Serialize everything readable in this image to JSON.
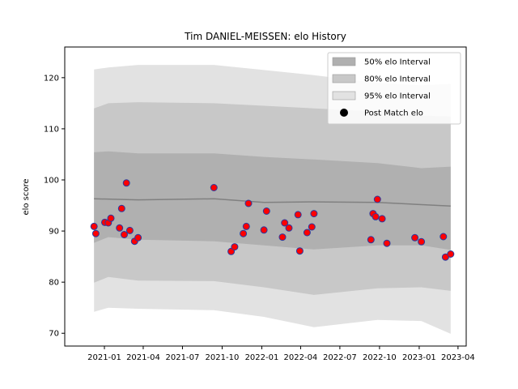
{
  "chart_data": {
    "type": "scatter",
    "title": "Tim DANIEL-MEISSEN: elo History",
    "xlabel": "",
    "ylabel": "elo score",
    "xlim": [
      "2020-10-01",
      "2023-04-20"
    ],
    "ylim": [
      67.5,
      126.0
    ],
    "x_ticks": [
      "2021-01",
      "2021-04",
      "2021-07",
      "2021-10",
      "2022-01",
      "2022-04",
      "2022-07",
      "2022-10",
      "2023-01",
      "2023-04"
    ],
    "y_ticks": [
      70,
      80,
      90,
      100,
      110,
      120
    ],
    "grid": false,
    "legend_position": "top-right",
    "legend": [
      "50% elo Interval",
      "80% elo Interval",
      "95% elo Interval",
      "Post Match elo"
    ],
    "colors": {
      "band50": "#b0b0b0",
      "band80": "#c8c8c8",
      "band95": "#e2e2e2",
      "point_fill": "#ff0000",
      "point_edge": "#2a3aa0",
      "mean_line": "#808080"
    },
    "series": [
      {
        "name": "Post Match elo",
        "points": [
          {
            "x": "2020-12-08",
            "y": 90.9
          },
          {
            "x": "2020-12-12",
            "y": 89.5
          },
          {
            "x": "2021-01-02",
            "y": 91.7
          },
          {
            "x": "2021-01-10",
            "y": 91.6
          },
          {
            "x": "2021-01-16",
            "y": 92.5
          },
          {
            "x": "2021-02-05",
            "y": 90.6
          },
          {
            "x": "2021-02-10",
            "y": 94.4
          },
          {
            "x": "2021-02-16",
            "y": 89.3
          },
          {
            "x": "2021-02-21",
            "y": 99.4
          },
          {
            "x": "2021-03-01",
            "y": 90.1
          },
          {
            "x": "2021-03-12",
            "y": 88.0
          },
          {
            "x": "2021-03-20",
            "y": 88.7
          },
          {
            "x": "2021-09-12",
            "y": 98.5
          },
          {
            "x": "2021-10-22",
            "y": 86.0
          },
          {
            "x": "2021-10-30",
            "y": 86.9
          },
          {
            "x": "2021-11-19",
            "y": 89.5
          },
          {
            "x": "2021-11-26",
            "y": 90.9
          },
          {
            "x": "2021-12-01",
            "y": 95.4
          },
          {
            "x": "2022-01-06",
            "y": 90.2
          },
          {
            "x": "2022-01-12",
            "y": 93.9
          },
          {
            "x": "2022-02-18",
            "y": 88.8
          },
          {
            "x": "2022-02-23",
            "y": 91.6
          },
          {
            "x": "2022-03-05",
            "y": 90.6
          },
          {
            "x": "2022-03-26",
            "y": 93.2
          },
          {
            "x": "2022-03-30",
            "y": 86.1
          },
          {
            "x": "2022-04-16",
            "y": 89.7
          },
          {
            "x": "2022-04-27",
            "y": 90.8
          },
          {
            "x": "2022-05-02",
            "y": 93.4
          },
          {
            "x": "2022-09-11",
            "y": 88.3
          },
          {
            "x": "2022-09-16",
            "y": 93.4
          },
          {
            "x": "2022-09-22",
            "y": 92.8
          },
          {
            "x": "2022-09-26",
            "y": 96.2
          },
          {
            "x": "2022-10-07",
            "y": 92.4
          },
          {
            "x": "2022-10-18",
            "y": 87.6
          },
          {
            "x": "2022-12-22",
            "y": 88.7
          },
          {
            "x": "2023-01-06",
            "y": 87.9
          },
          {
            "x": "2023-02-26",
            "y": 88.9
          },
          {
            "x": "2023-03-03",
            "y": 84.9
          },
          {
            "x": "2023-03-15",
            "y": 85.5
          }
        ]
      },
      {
        "name": "",
        "type": "line",
        "points": [
          {
            "x": "2020-12-08",
            "y": 96.3
          },
          {
            "x": "2021-03-20",
            "y": 96.1
          },
          {
            "x": "2021-09-12",
            "y": 96.3
          },
          {
            "x": "2022-01-06",
            "y": 95.6
          },
          {
            "x": "2022-05-02",
            "y": 95.7
          },
          {
            "x": "2022-09-26",
            "y": 95.6
          },
          {
            "x": "2023-03-15",
            "y": 94.9
          }
        ]
      }
    ],
    "bands": [
      {
        "name": "95% elo Interval",
        "x": [
          "2020-12-08",
          "2021-01-10",
          "2021-03-20",
          "2021-09-12",
          "2022-01-06",
          "2022-05-02",
          "2022-09-26",
          "2023-01-06",
          "2023-03-15"
        ],
        "lower": [
          74.2,
          75.0,
          74.8,
          74.5,
          73.2,
          71.2,
          72.6,
          72.4,
          69.9
        ],
        "upper": [
          121.6,
          122.0,
          122.5,
          122.5,
          121.5,
          120.5,
          119.0,
          118.5,
          118.8
        ]
      },
      {
        "name": "80% elo Interval",
        "x": [
          "2020-12-08",
          "2021-01-10",
          "2021-03-20",
          "2021-09-12",
          "2022-01-06",
          "2022-05-02",
          "2022-09-26",
          "2023-01-06",
          "2023-03-15"
        ],
        "lower": [
          79.9,
          81.0,
          80.3,
          80.2,
          79.0,
          77.5,
          78.8,
          79.0,
          78.3
        ],
        "upper": [
          114.0,
          115.0,
          115.2,
          115.0,
          114.5,
          114.0,
          113.4,
          112.6,
          112.4
        ]
      },
      {
        "name": "50% elo Interval",
        "x": [
          "2020-12-08",
          "2021-01-10",
          "2021-03-20",
          "2021-09-12",
          "2022-01-06",
          "2022-05-02",
          "2022-09-26",
          "2023-01-06",
          "2023-03-15"
        ],
        "lower": [
          87.7,
          88.8,
          88.3,
          88.0,
          87.2,
          86.4,
          87.2,
          87.2,
          86.3
        ],
        "upper": [
          105.4,
          105.6,
          105.2,
          105.2,
          104.5,
          104.0,
          103.3,
          102.3,
          102.6
        ]
      }
    ]
  }
}
